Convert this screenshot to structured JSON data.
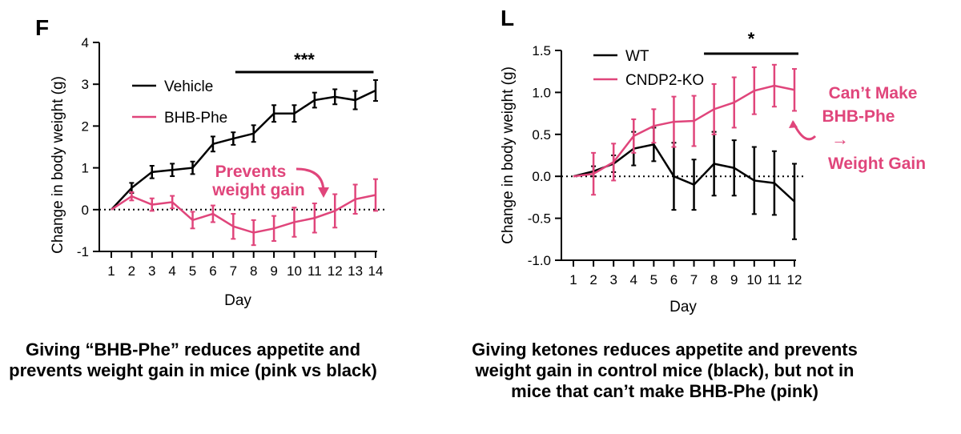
{
  "chart_data": [
    {
      "type": "line",
      "panel_letter": "F",
      "title": "",
      "xlabel": "Day",
      "ylabel": "Change in body weight (g)",
      "xlim": [
        1,
        14
      ],
      "ylim": [
        -1,
        4
      ],
      "x_ticks": [
        1,
        2,
        3,
        4,
        5,
        6,
        7,
        8,
        9,
        10,
        11,
        12,
        13,
        14
      ],
      "y_ticks": [
        -1,
        0,
        1,
        2,
        3,
        4
      ],
      "baseline": 0,
      "x": [
        1,
        2,
        3,
        4,
        5,
        6,
        7,
        8,
        9,
        10,
        11,
        12,
        13,
        14
      ],
      "series": [
        {
          "name": "Vehicle",
          "color": "#000000",
          "values": [
            0,
            0.52,
            0.9,
            0.95,
            1.0,
            1.57,
            1.7,
            1.82,
            2.3,
            2.3,
            2.62,
            2.7,
            2.62,
            2.85
          ],
          "errors": [
            0,
            0.12,
            0.15,
            0.15,
            0.15,
            0.18,
            0.15,
            0.2,
            0.2,
            0.2,
            0.18,
            0.18,
            0.22,
            0.25
          ]
        },
        {
          "name": "BHB-Phe",
          "color": "#e0457b",
          "values": [
            0,
            0.32,
            0.12,
            0.18,
            -0.25,
            -0.1,
            -0.4,
            -0.55,
            -0.45,
            -0.3,
            -0.2,
            -0.03,
            0.25,
            0.35
          ],
          "errors": [
            0,
            0.1,
            0.15,
            0.15,
            0.2,
            0.2,
            0.3,
            0.3,
            0.3,
            0.35,
            0.35,
            0.4,
            0.35,
            0.38
          ]
        }
      ],
      "significance": {
        "label": "***",
        "from_day": 7.1,
        "to_day": 13.9
      },
      "annotation": {
        "line1": "Prevents",
        "line2": "weight gain"
      }
    },
    {
      "type": "line",
      "panel_letter": "L",
      "title": "",
      "xlabel": "Day",
      "ylabel": "Change in body weight (g)",
      "xlim": [
        1,
        12
      ],
      "ylim": [
        -1.0,
        1.5
      ],
      "x_ticks": [
        1,
        2,
        3,
        4,
        5,
        6,
        7,
        8,
        9,
        10,
        11,
        12
      ],
      "y_ticks": [
        -1.0,
        -0.5,
        0.0,
        0.5,
        1.0,
        1.5
      ],
      "y_tick_labels": [
        "-1.0",
        "-0.5",
        "0.0",
        "0.5",
        "1.0",
        "1.5"
      ],
      "baseline": 0,
      "x": [
        1,
        2,
        3,
        4,
        5,
        6,
        7,
        8,
        9,
        10,
        11,
        12
      ],
      "series": [
        {
          "name": "WT",
          "color": "#000000",
          "values": [
            0,
            0.06,
            0.15,
            0.33,
            0.38,
            0.0,
            -0.1,
            0.15,
            0.1,
            -0.05,
            -0.08,
            -0.3
          ],
          "errors": [
            0,
            0.06,
            0.1,
            0.2,
            0.2,
            0.4,
            0.3,
            0.38,
            0.33,
            0.4,
            0.38,
            0.45
          ]
        },
        {
          "name": "CNDP2-KO",
          "color": "#e0457b",
          "values": [
            0,
            0.03,
            0.17,
            0.48,
            0.6,
            0.65,
            0.66,
            0.8,
            0.88,
            1.02,
            1.08,
            1.03
          ],
          "errors": [
            0,
            0.25,
            0.22,
            0.2,
            0.2,
            0.3,
            0.3,
            0.3,
            0.3,
            0.28,
            0.25,
            0.25
          ]
        }
      ],
      "significance": {
        "label": "*",
        "from_day": 7.5,
        "to_day": 12.2
      },
      "annotation": {
        "line1": "Can’t Make",
        "line2": "BHB-Phe",
        "arrow": "→",
        "line3": "Weight Gain"
      }
    }
  ],
  "colors": {
    "pink": "#e0457b",
    "black": "#000000"
  },
  "captions": {
    "left": "Giving “BHB-Phe” reduces appetite and prevents weight gain in mice (pink vs black)",
    "right": "Giving ketones reduces appetite and prevents weight gain in control mice (black), but not in mice that can’t make BHB-Phe (pink)"
  }
}
